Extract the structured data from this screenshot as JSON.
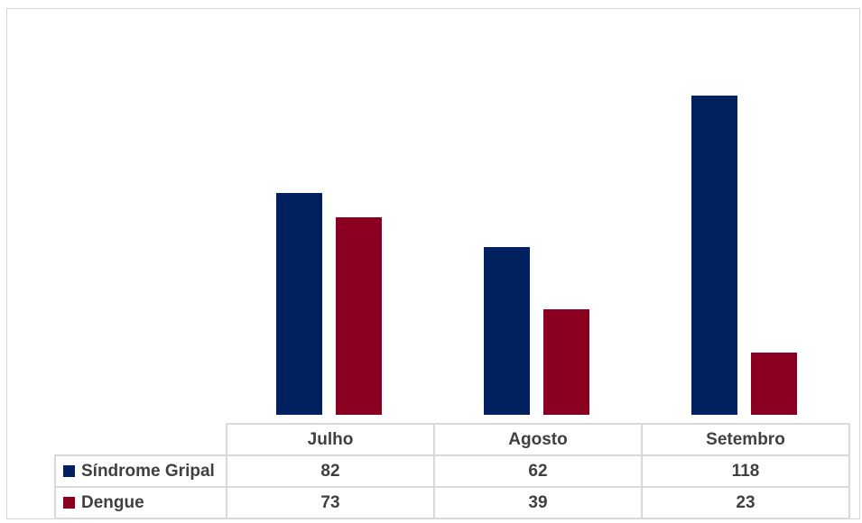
{
  "chart_data": {
    "type": "bar",
    "categories": [
      "Julho",
      "Agosto",
      "Setembro"
    ],
    "series": [
      {
        "name": "Síndrome Gripal",
        "values": [
          82,
          62,
          118
        ],
        "color": "#002060"
      },
      {
        "name": "Dengue",
        "values": [
          73,
          39,
          23
        ],
        "color": "#8B0020"
      }
    ],
    "title": "",
    "xlabel": "",
    "ylabel": "",
    "ylim": [
      0,
      120
    ],
    "grid": false,
    "legend": "data-table"
  }
}
